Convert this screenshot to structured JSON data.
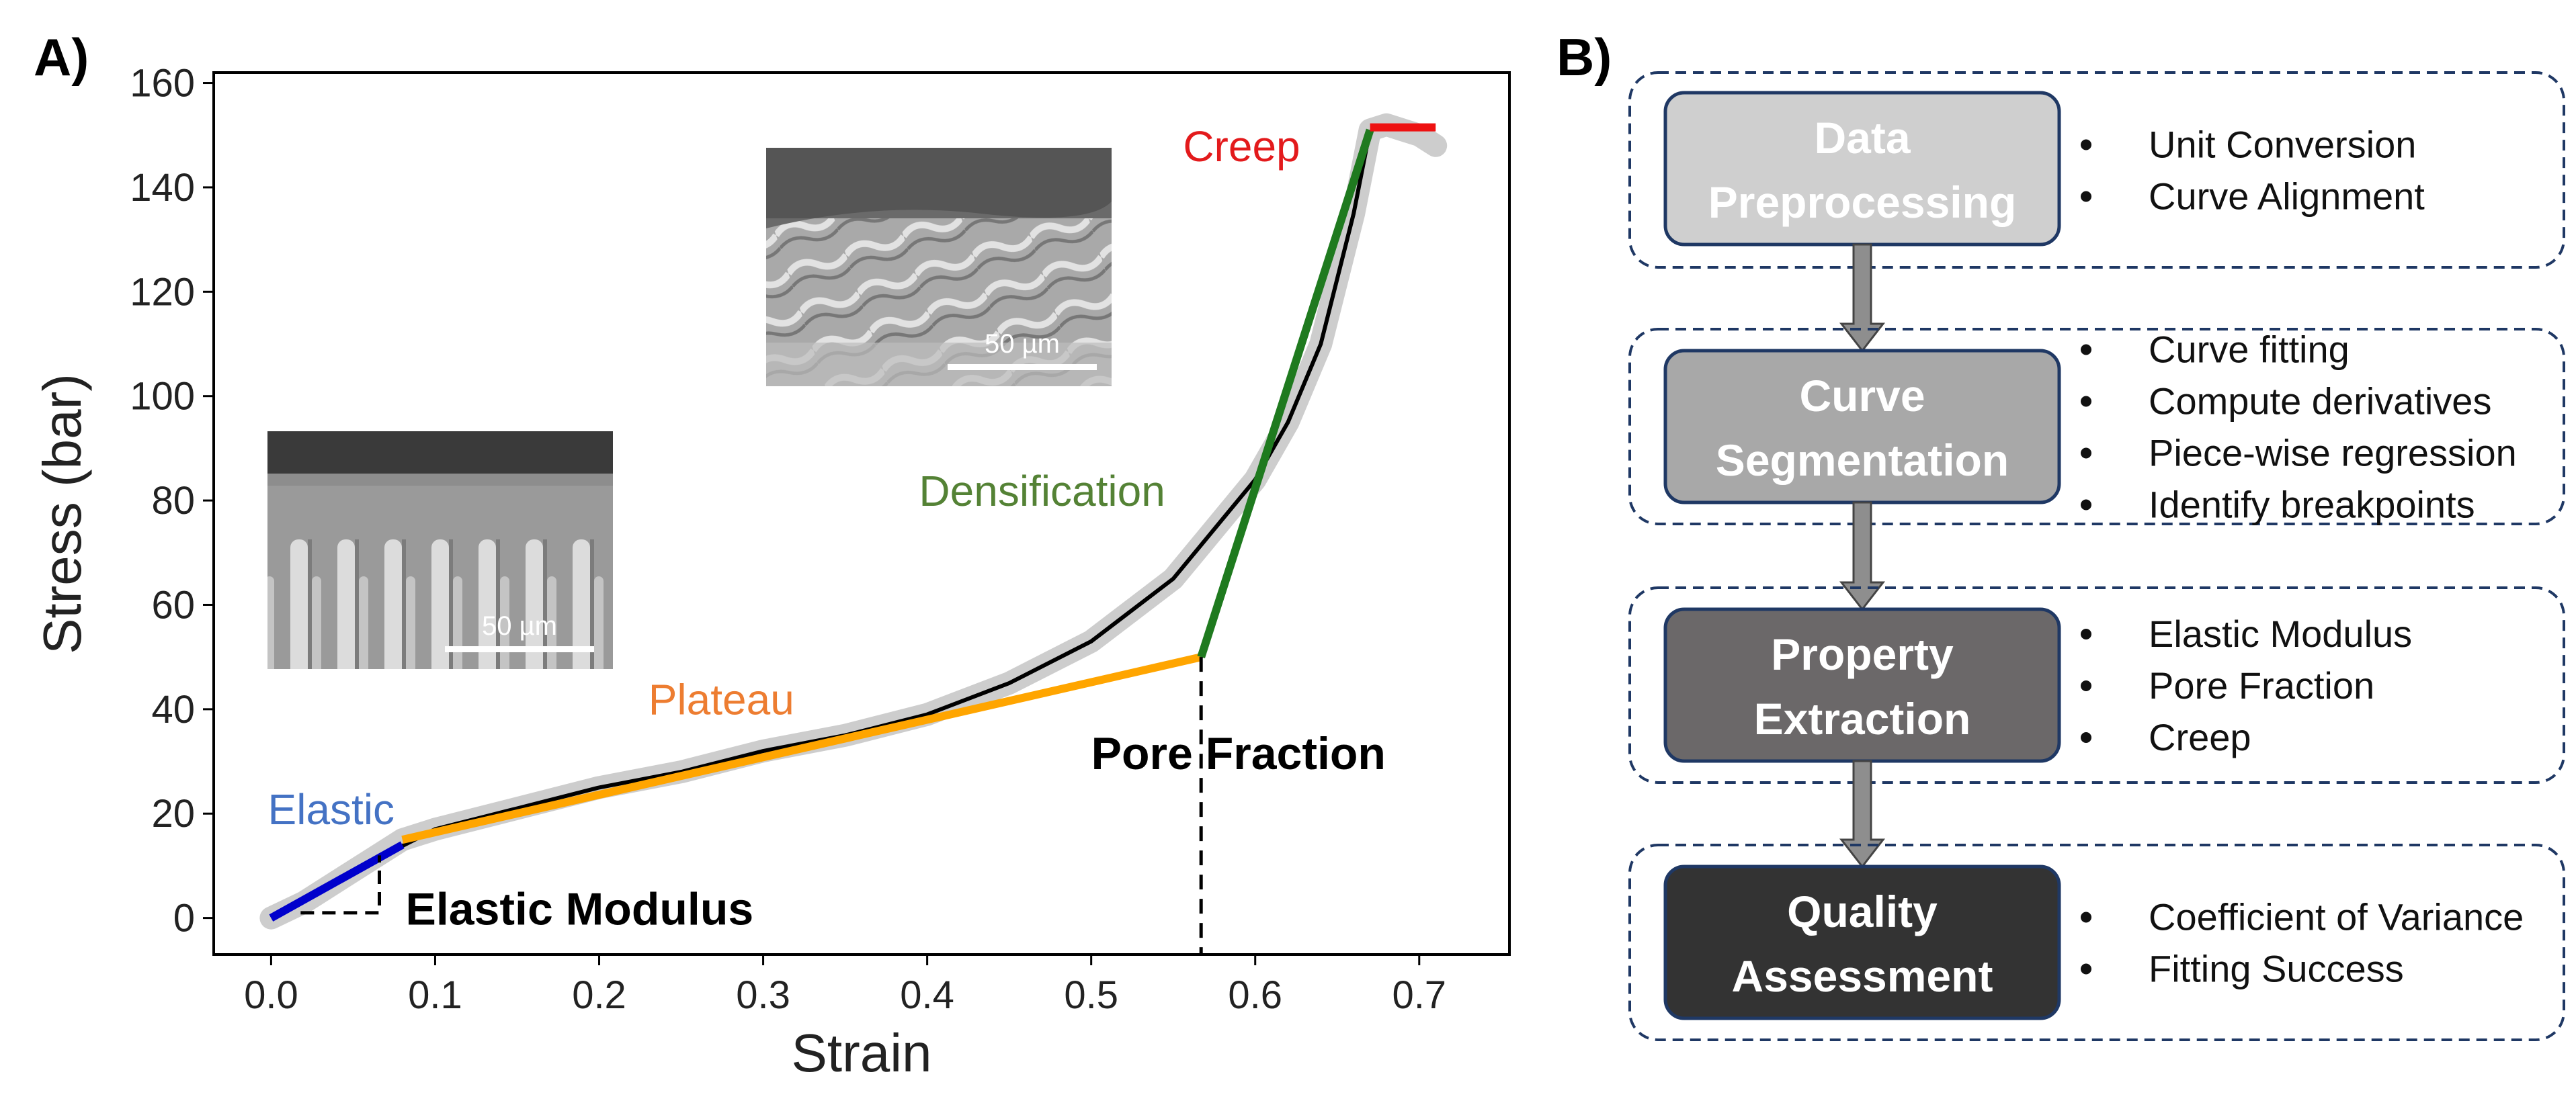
{
  "panel_a_label": "A)",
  "panel_b_label": "B)",
  "chart_data": {
    "type": "line",
    "xlabel": "Strain",
    "ylabel": "Stress (bar)",
    "xlim": [
      -0.035,
      0.755
    ],
    "ylim": [
      -7,
      162
    ],
    "xticks": [
      "0.0",
      "0.1",
      "0.2",
      "0.3",
      "0.4",
      "0.5",
      "0.6",
      "0.7"
    ],
    "xtick_values": [
      0.0,
      0.1,
      0.2,
      0.3,
      0.4,
      0.5,
      0.6,
      0.7
    ],
    "yticks": [
      "0",
      "20",
      "40",
      "60",
      "80",
      "100",
      "120",
      "140",
      "160"
    ],
    "ytick_values": [
      0,
      20,
      40,
      60,
      80,
      100,
      120,
      140,
      160
    ],
    "grid": false,
    "series": [
      {
        "name": "",
        "kind": "raw-data",
        "color": "#c8c8c8",
        "x": [
          0.0,
          0.02,
          0.04,
          0.06,
          0.08,
          0.1,
          0.15,
          0.2,
          0.25,
          0.3,
          0.35,
          0.4,
          0.45,
          0.5,
          0.55,
          0.6,
          0.62,
          0.64,
          0.66,
          0.67,
          0.68,
          0.69,
          0.7,
          0.71
        ],
        "y": [
          0,
          3,
          7,
          11,
          15,
          17,
          21,
          25,
          28,
          32,
          35,
          39,
          45,
          53,
          65,
          84,
          95,
          110,
          135,
          151,
          152,
          151,
          150,
          148
        ]
      },
      {
        "name": "",
        "kind": "fit-curve",
        "color": "#000000",
        "x": [
          0.0,
          0.05,
          0.1,
          0.15,
          0.2,
          0.25,
          0.3,
          0.35,
          0.4,
          0.45,
          0.5,
          0.55,
          0.6,
          0.62,
          0.64,
          0.66,
          0.67
        ],
        "y": [
          0,
          9,
          17,
          21,
          25,
          28,
          32,
          35,
          39,
          45,
          53,
          65,
          84,
          95,
          110,
          135,
          151
        ]
      },
      {
        "name": "Elastic",
        "kind": "segment",
        "color": "#0000cc",
        "x": [
          0.0,
          0.08
        ],
        "y": [
          0,
          14
        ]
      },
      {
        "name": "Plateau",
        "kind": "segment",
        "color": "#ffa500",
        "x": [
          0.08,
          0.567
        ],
        "y": [
          15,
          50
        ]
      },
      {
        "name": "Densification",
        "kind": "segment",
        "color": "#1f7a1f",
        "x": [
          0.567,
          0.67
        ],
        "y": [
          50,
          151
        ]
      },
      {
        "name": "Creep",
        "kind": "segment",
        "color": "#ee1111",
        "x": [
          0.67,
          0.71
        ],
        "y": [
          151.5,
          151.5
        ]
      }
    ],
    "annotations": {
      "elastic": "Elastic",
      "plateau": "Plateau",
      "densification": "Densification",
      "creep": "Creep",
      "pore_fraction": "Pore Fraction",
      "elastic_modulus": "Elastic Modulus",
      "pore_fraction_x": 0.567,
      "modulus_triangle": {
        "x0": 0.018,
        "x1": 0.066,
        "y0": 1,
        "y1": 12
      }
    },
    "insets": [
      {
        "name": "sem-cross-section-columnar",
        "scale_bar": "50 µm"
      },
      {
        "name": "sem-cross-section-compressed",
        "scale_bar": "50 µm"
      }
    ]
  },
  "workflow": {
    "steps": [
      {
        "title_lines": [
          "Data",
          "Preprocessing"
        ],
        "fill": "#cfcfcf",
        "bullets": [
          "Unit Conversion",
          "Curve Alignment"
        ]
      },
      {
        "title_lines": [
          "Curve",
          "Segmentation"
        ],
        "fill": "#a8a8a8",
        "bullets": [
          "Curve fitting",
          "Compute derivatives",
          "Piece-wise regression",
          "Identify breakpoints"
        ]
      },
      {
        "title_lines": [
          "Property",
          "Extraction"
        ],
        "fill": "#6b6869",
        "bullets": [
          "Elastic Modulus",
          "Pore Fraction",
          "Creep"
        ]
      },
      {
        "title_lines": [
          "Quality",
          "Assessment"
        ],
        "fill": "#333333",
        "bullets": [
          "Coefficient of Variance",
          "Fitting Success"
        ]
      }
    ]
  }
}
